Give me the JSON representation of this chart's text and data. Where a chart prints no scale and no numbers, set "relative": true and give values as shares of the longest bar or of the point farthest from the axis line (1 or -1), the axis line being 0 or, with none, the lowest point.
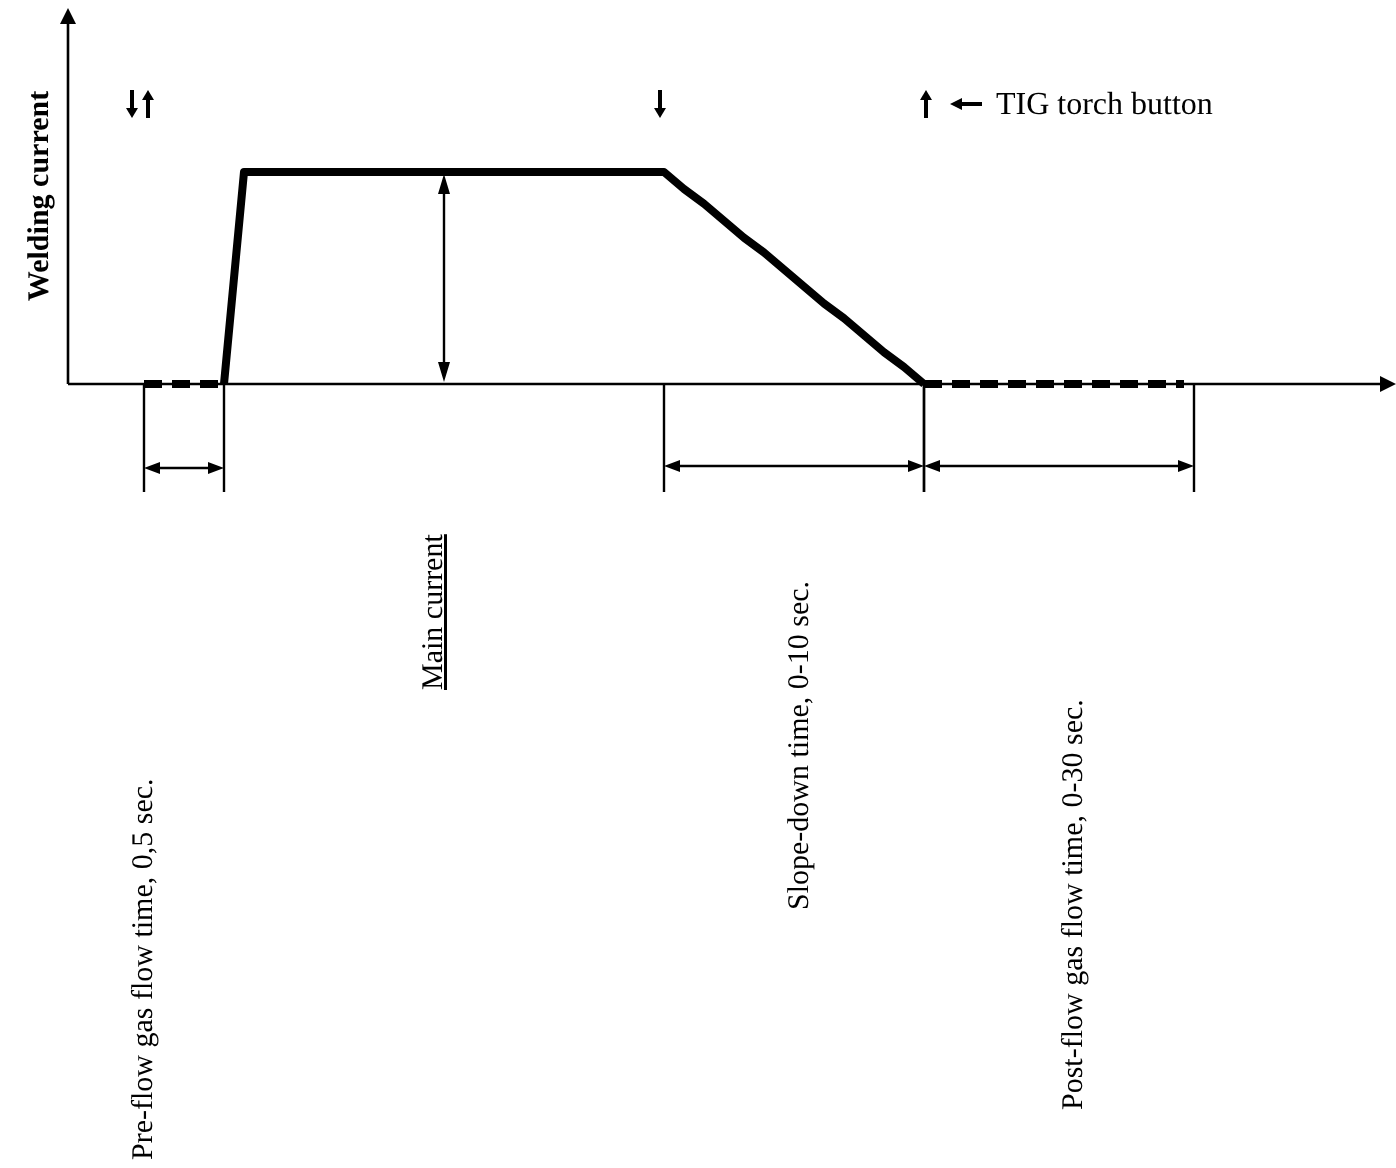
{
  "chart_data": {
    "type": "line",
    "relative": true,
    "ylabel": "Welding current",
    "annotations": [
      "TIG torch button",
      "Pre-flow gas flow time, 0,5 sec.",
      "Main current",
      "Slope-down time, 0-10 sec.",
      "Post-flow gas flow time, 0-30 sec."
    ],
    "categories": [
      null,
      null,
      null,
      null,
      null,
      null,
      null,
      null,
      null,
      null,
      null,
      null,
      null,
      null,
      null,
      null,
      null,
      null,
      null,
      null,
      null,
      null,
      null,
      null,
      null,
      null,
      null,
      null,
      null,
      null,
      null,
      null,
      null,
      null,
      null,
      null,
      null,
      null,
      null,
      null,
      null,
      null,
      null,
      null,
      null,
      null,
      null,
      null,
      null,
      null,
      null,
      null,
      null,
      null,
      null,
      null,
      null
    ],
    "series": [
      {
        "color": "#000000",
        "line_style": "dashed",
        "values": [
          null,
          null,
          null,
          null,
          0,
          0,
          0,
          0,
          0,
          null,
          null,
          null,
          null,
          null,
          null,
          null,
          null,
          null,
          null,
          null,
          null,
          null,
          null,
          null,
          null,
          null,
          null,
          null,
          null,
          null,
          null,
          null,
          null,
          null,
          null,
          null,
          null,
          null,
          null,
          null,
          null,
          null,
          null,
          null,
          null,
          null,
          null,
          null,
          null,
          null,
          null,
          null,
          null,
          null,
          null,
          null,
          null
        ]
      },
      {
        "color": "#000000",
        "line_style": "solid",
        "values": [
          null,
          null,
          null,
          null,
          null,
          null,
          null,
          null,
          0,
          1,
          1,
          1,
          1,
          1,
          1,
          1,
          1,
          1,
          1,
          1,
          1,
          1,
          1,
          1,
          1,
          1,
          1,
          1,
          1,
          1,
          1,
          0.92,
          0.85,
          0.77,
          0.69,
          0.62,
          0.54,
          0.46,
          0.38,
          0.31,
          0.23,
          0.15,
          0.08,
          0,
          null,
          null,
          null,
          null,
          null,
          null,
          null,
          null,
          null,
          null,
          null,
          null,
          null
        ]
      },
      {
        "color": "#000000",
        "line_style": "dashed",
        "values": [
          null,
          null,
          null,
          null,
          null,
          null,
          null,
          null,
          null,
          null,
          null,
          null,
          null,
          null,
          null,
          null,
          null,
          null,
          null,
          null,
          null,
          null,
          null,
          null,
          null,
          null,
          null,
          null,
          null,
          null,
          null,
          null,
          null,
          null,
          null,
          null,
          null,
          null,
          null,
          null,
          null,
          null,
          null,
          0,
          0,
          0,
          0,
          0,
          0,
          0,
          0,
          0,
          0,
          0,
          0,
          0,
          0
        ]
      }
    ]
  }
}
